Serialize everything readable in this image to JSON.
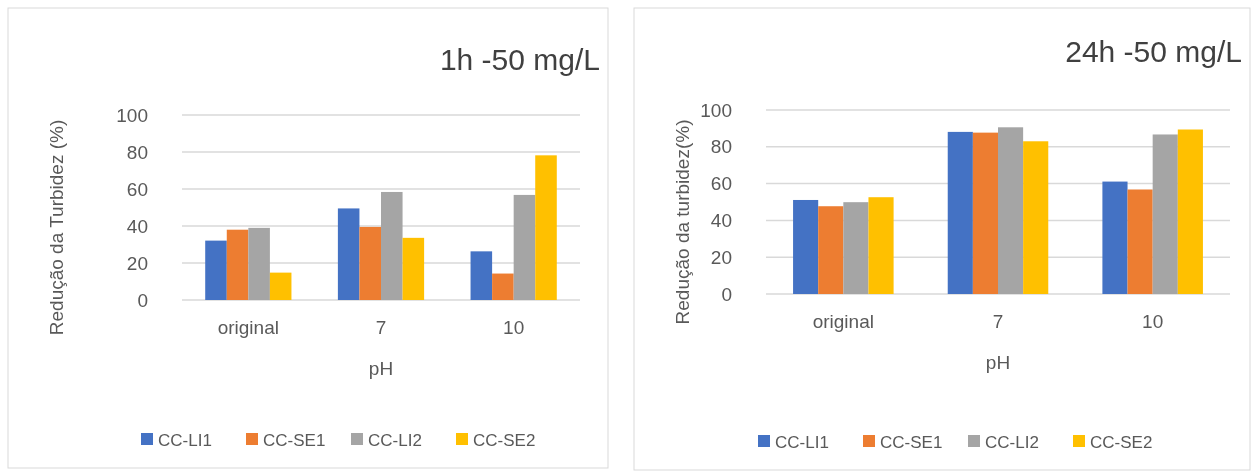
{
  "chart_data": [
    {
      "type": "bar",
      "title": "1h -50 mg/L",
      "xlabel": "pH",
      "ylabel": "Redução da Turbidez (%)",
      "categories": [
        "original",
        "7",
        "10"
      ],
      "series": [
        {
          "name": "CC-LI1",
          "color": "#4472c4",
          "values": [
            32.1,
            49.5,
            26.3
          ]
        },
        {
          "name": "CC-SE1",
          "color": "#ed7d31",
          "values": [
            38,
            39.5,
            14.3
          ]
        },
        {
          "name": "CC-LI2",
          "color": "#a5a5a5",
          "values": [
            39,
            58.4,
            56.8
          ]
        },
        {
          "name": "CC-SE2",
          "color": "#ffc000",
          "values": [
            14.8,
            33.6,
            78.2
          ]
        }
      ],
      "ylim": [
        0,
        100
      ],
      "yticks": [
        0,
        20,
        40,
        60,
        80,
        100
      ],
      "grid": "y",
      "legend": "bottom"
    },
    {
      "type": "bar",
      "title": "24h -50 mg/L",
      "xlabel": "pH",
      "ylabel": "Redução da turbidez(%)",
      "categories": [
        "original",
        "7",
        "10"
      ],
      "series": [
        {
          "name": "CC-LI1",
          "color": "#4472c4",
          "values": [
            51.1,
            88.1,
            61.1
          ]
        },
        {
          "name": "CC-SE1",
          "color": "#ed7d31",
          "values": [
            47.7,
            87.7,
            56.8
          ]
        },
        {
          "name": "CC-LI2",
          "color": "#a5a5a5",
          "values": [
            49.9,
            90.6,
            86.7
          ]
        },
        {
          "name": "CC-SE2",
          "color": "#ffc000",
          "values": [
            52.6,
            83,
            89.4
          ]
        }
      ],
      "ylim": [
        0,
        100
      ],
      "yticks": [
        0,
        20,
        40,
        60,
        80,
        100
      ],
      "grid": "y",
      "legend": "bottom"
    }
  ]
}
